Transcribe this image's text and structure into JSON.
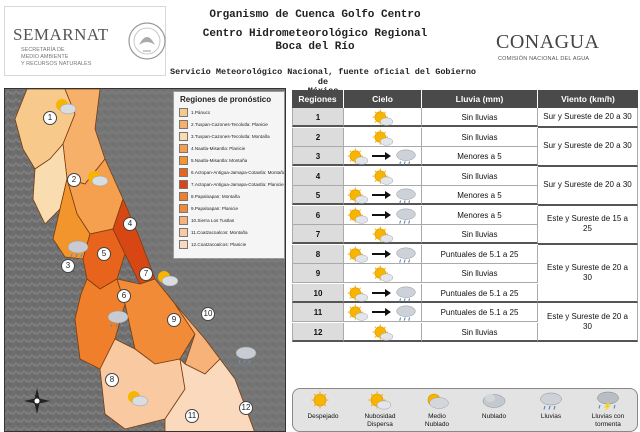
{
  "header": {
    "semarnat": {
      "name": "SEMARNAT",
      "sub_line1": "SECRETARÍA DE",
      "sub_line2": "MEDIO AMBIENTE",
      "sub_line3": "Y RECURSOS NATURALES"
    },
    "title_line1": "Organismo de Cuenca Golfo Centro",
    "title_line2": "Centro Hidrometeorológico Regional",
    "title_line3": "Boca del Río",
    "service_line1": "Servicio Meteorológico Nacional, fuente oficial del Gobierno de",
    "service_line2": "México",
    "conagua": {
      "name": "CONAGUA",
      "sub": "COMISIÓN NACIONAL DEL AGUA"
    }
  },
  "legend": {
    "title": "Regiones de pronóstico",
    "items": [
      {
        "label": "1.Pánuco",
        "color": "#f7c98a"
      },
      {
        "label": "2.Tuxpan-Cazones-Tecolutla: Planicie",
        "color": "#f6b06a"
      },
      {
        "label": "3.Tuxpan-Cazones-Tecolutla: Montaña",
        "color": "#f9dcb0"
      },
      {
        "label": "4.Nautla-Misantla: Planicie",
        "color": "#f5a04f"
      },
      {
        "label": "5.Nautla-Misantla: Montaña",
        "color": "#f2952d"
      },
      {
        "label": "6.Actopan-Antigua-Jamapa-Cotaxtla: Montaña",
        "color": "#e8641c"
      },
      {
        "label": "7.Actopan-Antigua-Jamapa-Cotaxtla: Planicie",
        "color": "#d84713"
      },
      {
        "label": "8.Papaloapan: Montaña",
        "color": "#ef7f2a"
      },
      {
        "label": "9.Papaloapan: Planicie",
        "color": "#f28b38"
      },
      {
        "label": "10.Sierra Los Tuxtlas",
        "color": "#f7b27a"
      },
      {
        "label": "11.Coatzacoalcos: Montaña",
        "color": "#f9c9a2"
      },
      {
        "label": "12.Coatzacoalcos: Planicie",
        "color": "#fbd9bd"
      }
    ]
  },
  "map_numbers": [
    "1",
    "2",
    "3",
    "4",
    "5",
    "6",
    "7",
    "8",
    "9",
    "10",
    "11",
    "12"
  ],
  "table": {
    "headers": {
      "region": "Regiones",
      "sky": "Cielo",
      "rain": "Lluvia (mm)",
      "wind": "Viento (km/h)"
    },
    "rows": [
      {
        "region": "1",
        "sky": [
          "partly-cloudy"
        ],
        "rain": "Sin lluvias"
      },
      {
        "region": "2",
        "sky": [
          "partly-cloudy"
        ],
        "rain": "Sin lluvias"
      },
      {
        "region": "3",
        "sky": [
          "partly-cloudy",
          "showers"
        ],
        "rain": "Menores a 5"
      },
      {
        "region": "4",
        "sky": [
          "partly-cloudy"
        ],
        "rain": "Sin lluvias"
      },
      {
        "region": "5",
        "sky": [
          "partly-cloudy",
          "showers"
        ],
        "rain": "Menores a 5"
      },
      {
        "region": "6",
        "sky": [
          "partly-cloudy",
          "showers"
        ],
        "rain": "Menores a 5"
      },
      {
        "region": "7",
        "sky": [
          "partly-cloudy"
        ],
        "rain": "Sin lluvias"
      },
      {
        "region": "8",
        "sky": [
          "partly-cloudy",
          "showers"
        ],
        "rain": "Puntuales de 5.1 a 25"
      },
      {
        "region": "9",
        "sky": [
          "partly-cloudy"
        ],
        "rain": "Sin lluvias"
      },
      {
        "region": "10",
        "sky": [
          "partly-cloudy",
          "showers"
        ],
        "rain": "Puntuales de 5.1 a 25"
      },
      {
        "region": "11",
        "sky": [
          "partly-cloudy",
          "showers"
        ],
        "rain": "Puntuales de 5.1 a 25"
      },
      {
        "region": "12",
        "sky": [
          "partly-cloudy"
        ],
        "rain": "Sin lluvias"
      }
    ],
    "wind_groups": [
      {
        "rows": [
          1
        ],
        "text": "Sur y Sureste de 20 a 30"
      },
      {
        "rows": [
          2,
          3
        ],
        "text": "Sur y Sureste de 20 a 30"
      },
      {
        "rows": [
          4,
          5
        ],
        "text": "Sur y Sureste de 20 a 30"
      },
      {
        "rows": [
          6,
          7
        ],
        "text": "Este y Sureste de 15 a 25"
      },
      {
        "rows": [
          8,
          9,
          10
        ],
        "text": "Este y Sureste de 20 a 30"
      },
      {
        "rows": [
          11,
          12
        ],
        "text": "Este y Sureste de 20 a 30"
      }
    ]
  },
  "icon_legend": [
    {
      "icon": "sunny",
      "line1": "Despejado",
      "line2": ""
    },
    {
      "icon": "partly-cloudy",
      "line1": "Nubosidad",
      "line2": "Dispersa"
    },
    {
      "icon": "mostly-cloudy",
      "line1": "Medio",
      "line2": "Nublado"
    },
    {
      "icon": "cloudy",
      "line1": "Nublado",
      "line2": ""
    },
    {
      "icon": "showers",
      "line1": "Lluvias",
      "line2": ""
    },
    {
      "icon": "thunderstorm",
      "line1": "Lluvias con",
      "line2": "tormenta"
    }
  ],
  "colors": {
    "header_bg": "#4a4a4a",
    "region_cell_bg": "#dcdcdc",
    "sun": "#f7b500",
    "cloud": "#cfd3d8"
  }
}
